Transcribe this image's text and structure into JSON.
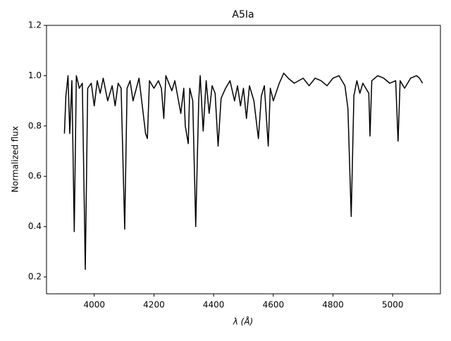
{
  "chart_data": {
    "type": "line",
    "title": "A5Ia",
    "xlabel": "λ (Å)",
    "ylabel": "Normalized flux",
    "color": "#000000",
    "x": [
      3900,
      3905,
      3912,
      3918,
      3925,
      3933,
      3940,
      3950,
      3960,
      3970,
      3978,
      3990,
      4000,
      4010,
      4020,
      4030,
      4045,
      4060,
      4070,
      4080,
      4090,
      4102,
      4110,
      4120,
      4130,
      4150,
      4172,
      4178,
      4185,
      4200,
      4215,
      4225,
      4233,
      4240,
      4260,
      4270,
      4290,
      4300,
      4305,
      4315,
      4320,
      4330,
      4340,
      4350,
      4355,
      4365,
      4375,
      4385,
      4395,
      4405,
      4415,
      4425,
      4440,
      4455,
      4470,
      4480,
      4490,
      4500,
      4510,
      4520,
      4535,
      4550,
      4560,
      4570,
      4583,
      4590,
      4600,
      4620,
      4635,
      4650,
      4670,
      4700,
      4720,
      4740,
      4760,
      4780,
      4800,
      4820,
      4840,
      4850,
      4861,
      4870,
      4880,
      4890,
      4900,
      4920,
      4924,
      4930,
      4950,
      4970,
      4990,
      5010,
      5018,
      5025,
      5040,
      5060,
      5080,
      5090,
      5100
    ],
    "values": [
      0.77,
      0.92,
      1.0,
      0.77,
      0.98,
      0.38,
      1.0,
      0.95,
      0.97,
      0.23,
      0.95,
      0.97,
      0.88,
      0.98,
      0.93,
      0.99,
      0.9,
      0.96,
      0.88,
      0.97,
      0.95,
      0.39,
      0.95,
      0.98,
      0.9,
      0.99,
      0.77,
      0.75,
      0.98,
      0.95,
      0.98,
      0.95,
      0.83,
      1.0,
      0.94,
      0.98,
      0.85,
      0.95,
      0.8,
      0.73,
      0.95,
      0.9,
      0.4,
      0.9,
      1.0,
      0.78,
      0.98,
      0.85,
      0.96,
      0.93,
      0.72,
      0.91,
      0.95,
      0.98,
      0.9,
      0.96,
      0.88,
      0.95,
      0.83,
      0.96,
      0.9,
      0.75,
      0.92,
      0.96,
      0.72,
      0.95,
      0.9,
      0.97,
      1.01,
      0.99,
      0.97,
      0.99,
      0.96,
      0.99,
      0.98,
      0.96,
      0.99,
      1.0,
      0.96,
      0.87,
      0.44,
      0.92,
      0.98,
      0.93,
      0.97,
      0.93,
      0.76,
      0.98,
      1.0,
      0.99,
      0.97,
      0.98,
      0.74,
      0.98,
      0.95,
      0.99,
      1.0,
      0.99,
      0.97
    ],
    "xlim": [
      3840,
      5160
    ],
    "ylim": [
      0.133,
      1.2
    ],
    "xticks": [
      4000,
      4200,
      4400,
      4600,
      4800,
      5000
    ],
    "yticks": [
      0.2,
      0.4,
      0.6,
      0.8,
      {
        "value": 1,
        "label": "1.0"
      },
      1.2
    ]
  }
}
